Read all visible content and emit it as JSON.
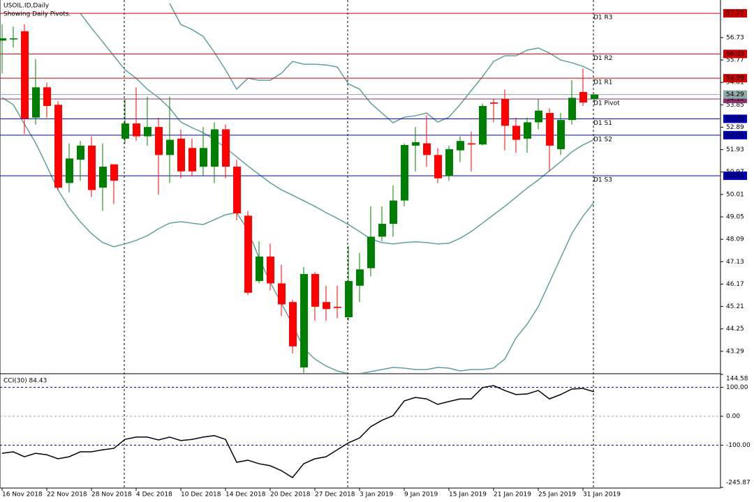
{
  "chart_data": [
    {
      "type": "candlestick",
      "title": "USOIL.ID,Daily",
      "subtitle": "Showing Daily Pivots.",
      "categories": [
        "16 Nov 2018",
        null,
        null,
        null,
        "22 Nov 2018",
        null,
        null,
        null,
        "28 Nov 2018",
        null,
        null,
        null,
        "4 Dec 2018",
        null,
        null,
        null,
        "10 Dec 2018",
        null,
        null,
        null,
        "14 Dec 2018",
        null,
        null,
        null,
        "20 Dec 2018",
        null,
        null,
        null,
        "27 Dec 2018",
        null,
        null,
        null,
        "3 Jan 2019",
        null,
        null,
        null,
        "9 Jan 2019",
        null,
        null,
        null,
        "15 Jan 2019",
        null,
        null,
        null,
        "21 Jan 2019",
        null,
        null,
        null,
        "25 Jan 2019",
        null,
        null,
        null,
        "31 Jan 2019",
        null
      ],
      "open": [
        56.6,
        56.65,
        57.0,
        53.3,
        54.6,
        53.85,
        50.5,
        51.5,
        52.1,
        50.3,
        51.3,
        52.4,
        53.05,
        52.5,
        52.9,
        51.7,
        52.4,
        52.0,
        51.2,
        51.2,
        52.8,
        51.2,
        49.1,
        46.3,
        47.35,
        46.2,
        45.4,
        42.6,
        46.6,
        45.4,
        45.2,
        44.75,
        46.1,
        46.85,
        48.2,
        48.75,
        49.75,
        52.1,
        52.2,
        51.7,
        50.8,
        51.9,
        52.2,
        52.15,
        53.95,
        54.1,
        52.95,
        52.4,
        53.1,
        53.5,
        51.95,
        53.2,
        54.4,
        54.1
      ],
      "high": [
        57.3,
        57.2,
        57.3,
        55.8,
        54.8,
        54.0,
        52.2,
        52.3,
        52.5,
        52.2,
        51.3,
        54.1,
        54.6,
        54.2,
        53.3,
        54.2,
        52.8,
        52.4,
        52.9,
        53.1,
        53.0,
        51.5,
        49.3,
        48.0,
        47.9,
        47.0,
        45.5,
        46.9,
        46.7,
        46.1,
        46.1,
        47.8,
        47.5,
        49.5,
        49.5,
        50.4,
        52.2,
        52.9,
        53.4,
        52.0,
        52.1,
        52.5,
        52.7,
        53.9,
        54.1,
        54.5,
        53.3,
        53.3,
        54.1,
        53.7,
        53.5,
        54.9,
        55.4,
        54.3
      ],
      "low": [
        55.2,
        56.3,
        52.6,
        53.0,
        53.3,
        50.2,
        50.1,
        50.6,
        49.9,
        49.3,
        49.6,
        52.2,
        52.3,
        52.1,
        50.0,
        50.5,
        50.7,
        50.8,
        50.8,
        50.5,
        50.7,
        48.9,
        45.7,
        46.2,
        45.9,
        44.8,
        43.2,
        42.3,
        44.6,
        44.6,
        44.7,
        44.6,
        45.4,
        46.5,
        48.0,
        48.2,
        49.5,
        51.0,
        51.2,
        50.5,
        50.6,
        51.4,
        51.0,
        52.1,
        53.1,
        51.9,
        51.8,
        51.8,
        52.8,
        51.0,
        51.7,
        53.0,
        53.8,
        54.0
      ],
      "close": [
        56.7,
        56.7,
        53.26,
        54.6,
        53.8,
        50.3,
        51.55,
        52.1,
        50.2,
        51.2,
        50.6,
        53.05,
        52.5,
        52.9,
        51.7,
        52.35,
        51.0,
        51.0,
        52.0,
        52.8,
        51.2,
        49.2,
        45.8,
        47.35,
        46.2,
        45.3,
        43.5,
        46.6,
        45.2,
        45.1,
        45.15,
        46.3,
        46.8,
        48.2,
        48.75,
        49.75,
        52.13,
        52.25,
        51.7,
        50.7,
        51.95,
        52.3,
        52.15,
        53.8,
        53.9,
        52.95,
        52.35,
        53.1,
        53.6,
        52.1,
        53.2,
        54.15,
        53.95,
        54.29
      ],
      "up_color": "#008000",
      "down_color": "#ff0000",
      "bands": [
        {
          "color": "#5f9ea0",
          "values": [
            null,
            null,
            null,
            null,
            null,
            null,
            null,
            null,
            null,
            null,
            null,
            null,
            null,
            null,
            null,
            58.19,
            57.29,
            57.08,
            56.78,
            56.1,
            55.35,
            54.52,
            54.99,
            54.9,
            54.9,
            55.2,
            55.71,
            55.59,
            55.59,
            55.56,
            55.47,
            54.75,
            54.52,
            53.92,
            53.5,
            53.08,
            53.32,
            53.38,
            53.5,
            53.11,
            53.32,
            53.86,
            54.46,
            55.05,
            55.71,
            55.95,
            55.95,
            56.19,
            56.28,
            56.07,
            55.77,
            55.65,
            55.5,
            55.26
          ]
        },
        {
          "color": "#5f9ea0",
          "values": [
            null,
            null,
            null,
            null,
            null,
            null,
            null,
            57.77,
            57.14,
            56.55,
            55.95,
            55.35,
            54.99,
            54.52,
            54.16,
            53.71,
            53.11,
            52.87,
            52.66,
            52.36,
            52.01,
            51.62,
            51.23,
            50.87,
            50.51,
            50.21,
            49.98,
            49.74,
            49.5,
            49.23,
            48.99,
            48.72,
            48.42,
            48.1,
            47.95,
            47.89,
            47.95,
            47.98,
            47.95,
            47.89,
            47.92,
            48.13,
            48.42,
            48.78,
            49.14,
            49.5,
            49.89,
            50.28,
            50.63,
            51.02,
            51.41,
            51.83,
            52.13,
            52.36
          ]
        },
        {
          "color": "#5f9ea0",
          "values": [
            54.16,
            53.86,
            53.02,
            52.22,
            51.23,
            50.21,
            49.44,
            48.84,
            48.33,
            47.95,
            47.77,
            47.89,
            48.04,
            48.24,
            48.54,
            48.78,
            48.84,
            48.78,
            48.72,
            48.93,
            49.14,
            49.23,
            48.48,
            47.29,
            46.24,
            45.35,
            44.45,
            43.41,
            42.96,
            42.66,
            42.45,
            42.33,
            42.33,
            42.42,
            42.51,
            42.6,
            42.57,
            42.51,
            42.51,
            42.6,
            42.57,
            42.45,
            42.51,
            42.51,
            42.57,
            42.96,
            43.86,
            44.45,
            45.2,
            46.24,
            47.29,
            48.33,
            49.08,
            49.68
          ]
        }
      ],
      "pivots": [
        {
          "label": "D1 R3",
          "value": 57.77,
          "value_label": "57.77",
          "color": "#cc0000"
        },
        {
          "label": "D1 R2",
          "value": 56.03,
          "value_label": "56.03",
          "color": "#cc0000"
        },
        {
          "label": "D1 R1",
          "value": 54.99,
          "value_label": "54.99",
          "color": "#cc0000"
        },
        {
          "label": "D1 Pivot",
          "value": 54.1,
          "value_label": "54.10",
          "color": "#8b2e6e"
        },
        {
          "label": "D1 S1",
          "value": 53.25,
          "value_label": "53.25",
          "color": "#0000b0"
        },
        {
          "label": "D1 S2",
          "value": 52.55,
          "value_label": "52.55",
          "color": "#0000b0"
        },
        {
          "label": "D1 S3",
          "value": 50.81,
          "value_label": "50.81",
          "color": "#0000b0"
        }
      ],
      "last_price": 54.29,
      "last_price_color": "#8fa8a8",
      "ylim": [
        42.36,
        58.34
      ],
      "yticks": [
        56.73,
        55.77,
        54.81,
        53.85,
        52.89,
        51.93,
        50.97,
        50.01,
        49.05,
        48.09,
        47.13,
        46.17,
        45.21,
        44.25,
        43.29
      ]
    },
    {
      "type": "line",
      "title": "CCI(30) 84.43",
      "color": "#000000",
      "values": [
        -128,
        -123,
        -140,
        -128,
        -133,
        -147,
        -140,
        -123,
        -123,
        -116,
        -111,
        -80,
        -72,
        -72,
        -82,
        -72,
        -84,
        -80,
        -72,
        -67,
        -80,
        -159,
        -152,
        -164,
        -171,
        -188,
        -212,
        -164,
        -147,
        -140,
        -116,
        -92,
        -75,
        -36,
        -14,
        2,
        53,
        65,
        60,
        41,
        51,
        60,
        60,
        99,
        106,
        89,
        75,
        77,
        89,
        60,
        75,
        94,
        96,
        84.43
      ],
      "ylim": [
        -248.2,
        144.6
      ],
      "yticks": [
        144.58,
        {
          "value": 100,
          "label": "100.00"
        },
        {
          "value": 0,
          "label": "0.00"
        },
        {
          "value": -100,
          "label": "-100.00"
        },
        -245.87
      ],
      "levels": [
        {
          "value": 100,
          "color": "#0000b0"
        },
        {
          "value": 0,
          "color": "#a0a0a0"
        },
        {
          "value": -100,
          "color": "#0000b0"
        }
      ]
    }
  ]
}
